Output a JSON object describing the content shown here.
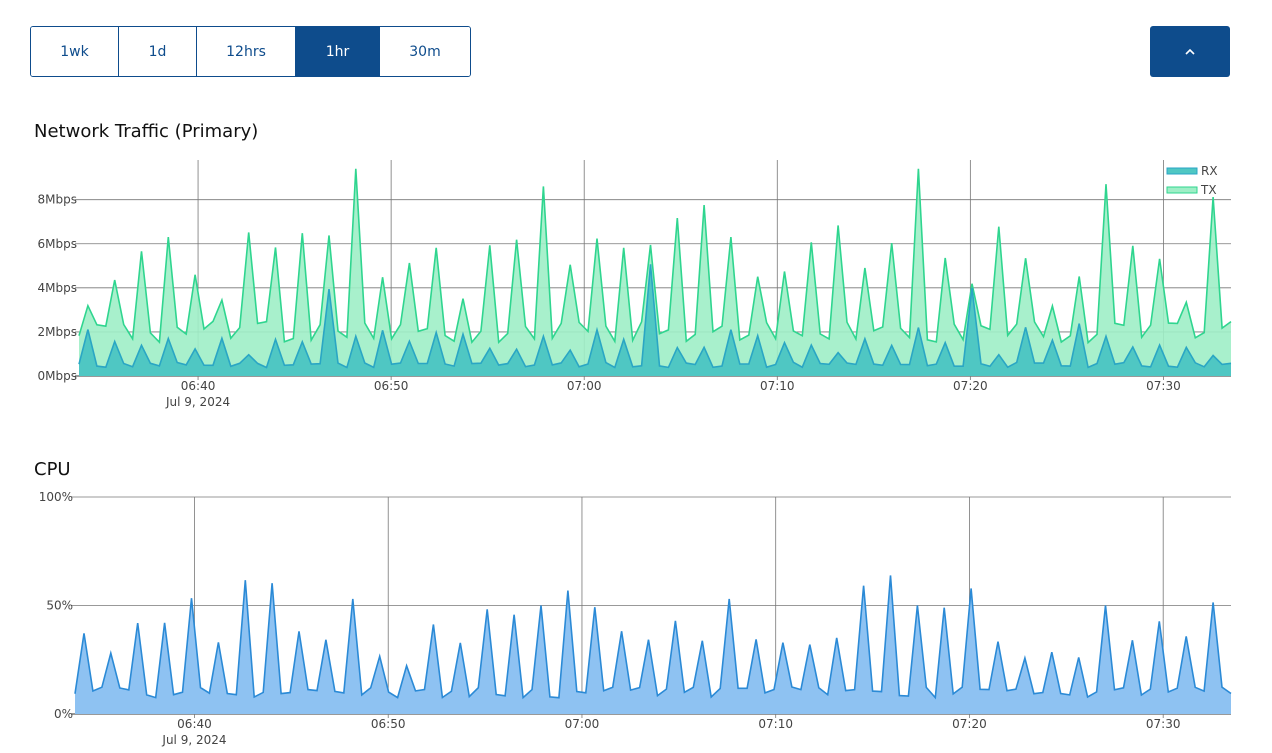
{
  "range_selector": {
    "buttons": [
      {
        "label": "1wk",
        "active": false
      },
      {
        "label": "1d",
        "active": false
      },
      {
        "label": "12hrs",
        "active": false
      },
      {
        "label": "1hr",
        "active": true
      },
      {
        "label": "30m",
        "active": false
      }
    ],
    "collapse_icon": "chevron-up-icon"
  },
  "colors": {
    "accent": "#0e4c8c",
    "rx_fill": "#4fc7c3",
    "rx_line": "#2aa6c4",
    "tx_fill": "#9eeec6",
    "tx_line": "#2fd58f",
    "cpu_fill": "#8ec2f2",
    "cpu_line": "#2b8ad6"
  },
  "chart_data": [
    {
      "type": "area",
      "title": "Network Traffic (Primary)",
      "x_range": [
        "06:33:50",
        "07:33:30"
      ],
      "x_ticks": [
        "06:40",
        "06:50",
        "07:00",
        "07:10",
        "07:20",
        "07:30"
      ],
      "x_date_label": "Jul 9, 2024",
      "y_ticks": [
        "0Mbps",
        "2Mbps",
        "4Mbps",
        "6Mbps",
        "8Mbps"
      ],
      "ylim": [
        0,
        9.8
      ],
      "y_unit": "Mbps",
      "legend": "top-right",
      "grid": true,
      "series": [
        {
          "name": "RX",
          "pattern": {
            "base": 0.5,
            "peaks": [
              2.2,
              2.4,
              2.0,
              1.5,
              1.8,
              2.1,
              1.6,
              2.4,
              1.9,
              5.5,
              1.7,
              2.3
            ]
          }
        },
        {
          "name": "TX",
          "pattern": {
            "base": 2.0,
            "peaks": [
              5.3,
              6.3,
              5.7,
              8.7,
              7.2,
              5.6,
              9.1,
              8.6,
              9.4,
              6.8,
              9.2,
              8.0
            ]
          }
        }
      ]
    },
    {
      "type": "area",
      "title": "CPU",
      "x_range": [
        "06:33:50",
        "07:33:30"
      ],
      "x_ticks": [
        "06:40",
        "06:50",
        "07:00",
        "07:10",
        "07:20",
        "07:30"
      ],
      "x_date_label": "Jul 9, 2024",
      "y_ticks": [
        "0%",
        "50%",
        "100%"
      ],
      "ylim": [
        0,
        100
      ],
      "y_unit": "%",
      "grid": true,
      "series": [
        {
          "name": "CPU",
          "pattern": {
            "base": 10,
            "peaks": [
              38,
              42,
              45,
              53,
              56,
              60,
              66,
              64,
              50,
              59,
              50,
              38
            ]
          }
        }
      ]
    }
  ]
}
